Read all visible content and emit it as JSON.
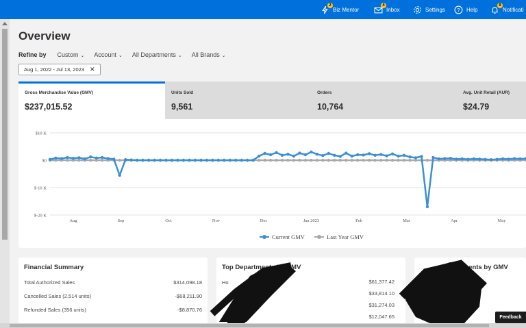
{
  "topnav": {
    "items": [
      {
        "label": "Biz Mentor",
        "icon": "lightning-icon",
        "badge": "2"
      },
      {
        "label": "Inbox",
        "icon": "mail-icon",
        "badge": "4"
      },
      {
        "label": "Settings",
        "icon": "gear-icon",
        "badge": ""
      },
      {
        "label": "Help",
        "icon": "help-circle-icon",
        "badge": ""
      },
      {
        "label": "Notificati",
        "icon": "bell-icon",
        "badge": "9"
      }
    ]
  },
  "page": {
    "title": "Overview"
  },
  "refine": {
    "label": "Refine by",
    "options": [
      "Custom",
      "Account",
      "All Departments",
      "All Brands"
    ],
    "date_range": "Aug 1, 2022 - Jul 13, 2023"
  },
  "kpis": [
    {
      "label": "Gross Merchandise Value (GMV)",
      "value": "$237,015.52"
    },
    {
      "label": "Units Sold",
      "value": "9,561"
    },
    {
      "label": "Orders",
      "value": "10,764"
    },
    {
      "label": "Avg. Unit Retail (AUR)",
      "value": "$24.79"
    }
  ],
  "chart_data": {
    "type": "line",
    "x_tick_labels": [
      "Aug",
      "Sep",
      "Oct",
      "Nov",
      "Dec",
      "Jan 2023",
      "Feb",
      "Mar",
      "Apr",
      "May"
    ],
    "y_tick_labels": [
      "$10 K",
      "$0",
      "$-10 K",
      "$-20 K"
    ],
    "ylim": [
      -20000,
      10000
    ],
    "grid": true,
    "legend_position": "bottom",
    "series": [
      {
        "name": "Current GMV",
        "color": "#3a8fd6",
        "values": [
          300,
          800,
          600,
          1000,
          700,
          900,
          500,
          1200,
          800,
          1000,
          600,
          400,
          -5500,
          200,
          100,
          0,
          0,
          0,
          0,
          0,
          0,
          0,
          0,
          0,
          0,
          0,
          0,
          0,
          0,
          0,
          0,
          0,
          0,
          0,
          0,
          0,
          1500,
          2500,
          2000,
          2800,
          1800,
          2200,
          1500,
          2600,
          2000,
          3000,
          2200,
          1700,
          2500,
          1800,
          1400,
          2600,
          1500,
          2000,
          1900,
          2400,
          1800,
          2100,
          1600,
          2300,
          1500,
          1800,
          1200,
          900,
          1400,
          -17000,
          1000,
          500,
          600,
          700,
          400,
          500,
          300,
          500,
          400,
          300,
          200,
          300,
          500,
          400,
          600,
          500,
          600
        ]
      },
      {
        "name": "Last Year GMV",
        "color": "#a8a9ad",
        "values": [
          0,
          0,
          0,
          0,
          0,
          0,
          0,
          0,
          0,
          0,
          0,
          0,
          0,
          0,
          0,
          0,
          0,
          0,
          0,
          0,
          0,
          0,
          0,
          0,
          0,
          0,
          0,
          0,
          0,
          0,
          0,
          0,
          0,
          0,
          0,
          0,
          0,
          0,
          0,
          0,
          0,
          0,
          0,
          0,
          0,
          0,
          0,
          0,
          0,
          0,
          0,
          0,
          0,
          0,
          0,
          0,
          0,
          0,
          0,
          0,
          0,
          0,
          0,
          0,
          0,
          0,
          0,
          0,
          0,
          0,
          0,
          0,
          0,
          0,
          0,
          0,
          0,
          0,
          0,
          0,
          0,
          0,
          0
        ]
      }
    ]
  },
  "financial_summary": {
    "title": "Financial Summary",
    "rows": [
      {
        "label": "Total Authorized Sales",
        "value": "$314,098.18"
      },
      {
        "label": "Cancelled Sales (2,514 units)",
        "value": "-$68,211.90"
      },
      {
        "label": "Refunded Sales (356 units)",
        "value": "-$8,870.76"
      }
    ]
  },
  "top_departments": {
    "title": "Top Departments by GMV",
    "row_prefix": "Ho",
    "values": [
      "$61,377.42",
      "$33,814.10",
      "$31,274.03",
      "$12,047.65"
    ]
  },
  "third_card": {
    "title": "...rtments by GMV"
  },
  "feedback": {
    "label": "Feedback"
  },
  "colors": {
    "brand": "#0071dc",
    "current_series": "#3a8fd6",
    "last_year_series": "#a8a9ad"
  }
}
